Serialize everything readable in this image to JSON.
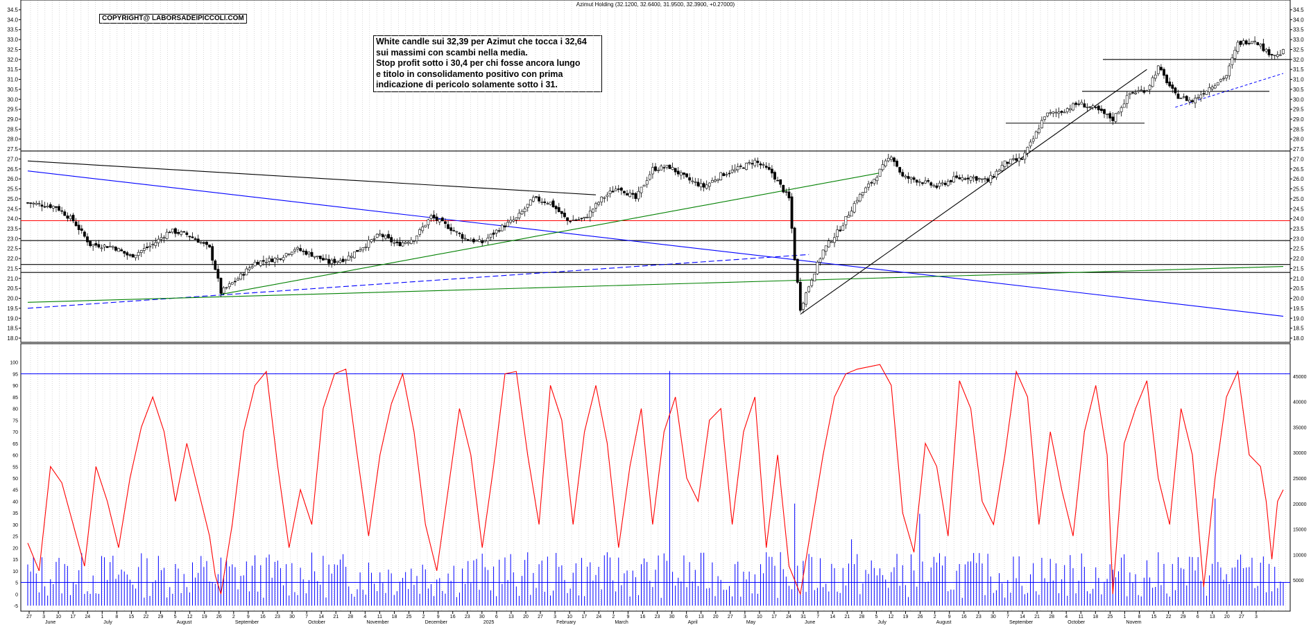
{
  "header": {
    "title": "Azimut Holding (32.1200, 32.6400, 31.9500, 32.3900, +0.27000)",
    "copyright": "COPYRIGHT@ LABORSADEIPICCOLI.COM"
  },
  "note": {
    "lines": [
      "White candle sui 32,39 per Azimut che tocca i 32,64",
      "sui massimi con scambi nella media.",
      "Stop profit sotto i 30,4 per chi fosse ancora lungo",
      "e titolo in consolidamento positivo con prima",
      "indicazione di pericolo solamente sotto i 31."
    ]
  },
  "chart_data": [
    {
      "type": "candlestick",
      "title": "Azimut Holding (32.1200, 32.6400, 31.9500, 32.3900, +0.27000)",
      "ylim": [
        18.0,
        34.5
      ],
      "y_ticks": [
        "34.5",
        "34.0",
        "33.5",
        "33.0",
        "32.5",
        "32.0",
        "31.5",
        "31.0",
        "30.5",
        "30.0",
        "29.5",
        "29.0",
        "28.5",
        "28.0",
        "27.5",
        "27.0",
        "26.5",
        "26.0",
        "25.5",
        "25.0",
        "24.5",
        "24.0",
        "23.5",
        "23.0",
        "22.5",
        "22.0",
        "21.5",
        "21.0",
        "20.5",
        "20.0",
        "19.5",
        "19.0",
        "18.5",
        "18.0"
      ],
      "grid": true,
      "last_candle": {
        "open": 32.12,
        "high": 32.64,
        "low": 31.95,
        "close": 32.39,
        "change": 0.27
      },
      "price_path": [
        [
          0,
          24.8
        ],
        [
          10,
          24.6
        ],
        [
          16,
          23.9
        ],
        [
          22,
          22.7
        ],
        [
          30,
          22.6
        ],
        [
          36,
          22.1
        ],
        [
          44,
          22.7
        ],
        [
          50,
          23.4
        ],
        [
          56,
          23.2
        ],
        [
          60,
          22.9
        ],
        [
          64,
          22.5
        ],
        [
          66,
          21.5
        ],
        [
          68,
          20.3
        ],
        [
          74,
          21.0
        ],
        [
          80,
          21.8
        ],
        [
          88,
          22.0
        ],
        [
          94,
          22.5
        ],
        [
          100,
          22.2
        ],
        [
          106,
          21.8
        ],
        [
          112,
          22.0
        ],
        [
          118,
          22.6
        ],
        [
          124,
          23.2
        ],
        [
          130,
          22.7
        ],
        [
          136,
          23.0
        ],
        [
          142,
          24.1
        ],
        [
          148,
          23.6
        ],
        [
          154,
          23.0
        ],
        [
          160,
          22.8
        ],
        [
          166,
          23.5
        ],
        [
          172,
          24.0
        ],
        [
          178,
          25.0
        ],
        [
          184,
          24.8
        ],
        [
          190,
          23.9
        ],
        [
          196,
          24.0
        ],
        [
          202,
          25.0
        ],
        [
          208,
          25.6
        ],
        [
          214,
          25.0
        ],
        [
          220,
          26.5
        ],
        [
          226,
          26.6
        ],
        [
          232,
          26.0
        ],
        [
          238,
          25.6
        ],
        [
          244,
          26.2
        ],
        [
          250,
          26.5
        ],
        [
          256,
          26.9
        ],
        [
          262,
          26.3
        ],
        [
          268,
          25.0
        ],
        [
          270,
          22.0
        ],
        [
          272,
          19.5
        ],
        [
          276,
          21.0
        ],
        [
          280,
          22.4
        ],
        [
          286,
          23.5
        ],
        [
          292,
          25.0
        ],
        [
          298,
          26.0
        ],
        [
          304,
          27.2
        ],
        [
          308,
          26.1
        ],
        [
          314,
          25.9
        ],
        [
          320,
          25.6
        ],
        [
          326,
          26.0
        ],
        [
          332,
          26.1
        ],
        [
          338,
          25.9
        ],
        [
          344,
          26.8
        ],
        [
          350,
          27.0
        ],
        [
          354,
          28.0
        ],
        [
          358,
          29.2
        ],
        [
          364,
          29.4
        ],
        [
          370,
          29.8
        ],
        [
          376,
          29.5
        ],
        [
          382,
          29.0
        ],
        [
          388,
          30.3
        ],
        [
          394,
          30.5
        ],
        [
          398,
          31.6
        ],
        [
          404,
          30.2
        ],
        [
          410,
          29.9
        ],
        [
          416,
          30.6
        ],
        [
          422,
          31.2
        ],
        [
          426,
          32.8
        ],
        [
          432,
          33.0
        ],
        [
          436,
          32.4
        ],
        [
          440,
          32.2
        ],
        [
          442,
          32.39
        ]
      ],
      "lines": {
        "horizontal": [
          27.4,
          23.9,
          22.9,
          21.7,
          21.3,
          32.0,
          30.4,
          28.8
        ],
        "trend": [
          {
            "name": "",
            "color": "#0000ff",
            "from": [
              0,
              26.4
            ],
            "to": [
              442,
              19.1
            ]
          },
          {
            "name": "",
            "color": "#0000ff",
            "from": [
              0,
              19.5
            ],
            "to": [
              275,
              22.2
            ]
          },
          {
            "name": "",
            "color": "#008000",
            "from": [
              0,
              19.8
            ],
            "to": [
              442,
              21.6
            ]
          },
          {
            "name": "",
            "color": "#008000",
            "from": [
              68,
              20.2
            ],
            "to": [
              300,
              26.3
            ]
          },
          {
            "name": "",
            "color": "#000000",
            "from": [
              0,
              26.9
            ],
            "to": [
              200,
              25.2
            ]
          },
          {
            "name": "",
            "color": "#000000",
            "from": [
              272,
              19.2
            ],
            "to": [
              394,
              31.5
            ]
          }
        ]
      }
    },
    {
      "type": "line+bar",
      "name": "oscillator and volume",
      "y_ticks_left": [
        "100",
        "95",
        "90",
        "85",
        "80",
        "75",
        "70",
        "65",
        "60",
        "55",
        "50",
        "45",
        "40",
        "35",
        "30",
        "25",
        "20",
        "15",
        "10",
        "5",
        "0",
        "-5"
      ],
      "y_ticks_right": [
        "45000",
        "40000",
        "35000",
        "30000",
        "25000",
        "20000",
        "15000",
        "10000",
        "5000"
      ],
      "oscillator_levels": [
        95,
        5
      ],
      "oscillator_path": [
        [
          0,
          22
        ],
        [
          4,
          10
        ],
        [
          8,
          55
        ],
        [
          12,
          48
        ],
        [
          16,
          30
        ],
        [
          20,
          12
        ],
        [
          24,
          55
        ],
        [
          28,
          40
        ],
        [
          32,
          20
        ],
        [
          36,
          50
        ],
        [
          40,
          72
        ],
        [
          44,
          85
        ],
        [
          48,
          70
        ],
        [
          52,
          40
        ],
        [
          56,
          65
        ],
        [
          60,
          45
        ],
        [
          64,
          25
        ],
        [
          66,
          8
        ],
        [
          68,
          0
        ],
        [
          72,
          30
        ],
        [
          76,
          70
        ],
        [
          80,
          90
        ],
        [
          84,
          96
        ],
        [
          88,
          55
        ],
        [
          92,
          20
        ],
        [
          96,
          45
        ],
        [
          100,
          30
        ],
        [
          104,
          80
        ],
        [
          108,
          95
        ],
        [
          112,
          97
        ],
        [
          116,
          60
        ],
        [
          120,
          25
        ],
        [
          124,
          60
        ],
        [
          128,
          82
        ],
        [
          132,
          95
        ],
        [
          136,
          70
        ],
        [
          140,
          30
        ],
        [
          144,
          10
        ],
        [
          148,
          45
        ],
        [
          152,
          80
        ],
        [
          156,
          60
        ],
        [
          160,
          20
        ],
        [
          164,
          55
        ],
        [
          168,
          95
        ],
        [
          172,
          96
        ],
        [
          176,
          60
        ],
        [
          180,
          30
        ],
        [
          184,
          90
        ],
        [
          188,
          75
        ],
        [
          192,
          30
        ],
        [
          196,
          70
        ],
        [
          200,
          90
        ],
        [
          204,
          65
        ],
        [
          208,
          20
        ],
        [
          212,
          55
        ],
        [
          216,
          80
        ],
        [
          220,
          30
        ],
        [
          224,
          70
        ],
        [
          228,
          85
        ],
        [
          232,
          50
        ],
        [
          236,
          40
        ],
        [
          240,
          75
        ],
        [
          244,
          80
        ],
        [
          248,
          30
        ],
        [
          252,
          70
        ],
        [
          256,
          85
        ],
        [
          260,
          20
        ],
        [
          264,
          60
        ],
        [
          268,
          12
        ],
        [
          272,
          0
        ],
        [
          276,
          30
        ],
        [
          280,
          60
        ],
        [
          284,
          85
        ],
        [
          288,
          95
        ],
        [
          292,
          97
        ],
        [
          296,
          98
        ],
        [
          300,
          99
        ],
        [
          304,
          90
        ],
        [
          308,
          35
        ],
        [
          312,
          18
        ],
        [
          316,
          65
        ],
        [
          320,
          55
        ],
        [
          324,
          25
        ],
        [
          328,
          92
        ],
        [
          332,
          80
        ],
        [
          336,
          40
        ],
        [
          340,
          30
        ],
        [
          344,
          60
        ],
        [
          348,
          96
        ],
        [
          352,
          85
        ],
        [
          356,
          30
        ],
        [
          360,
          70
        ],
        [
          364,
          45
        ],
        [
          368,
          25
        ],
        [
          372,
          70
        ],
        [
          376,
          90
        ],
        [
          380,
          60
        ],
        [
          382,
          0
        ],
        [
          386,
          65
        ],
        [
          390,
          80
        ],
        [
          394,
          92
        ],
        [
          398,
          50
        ],
        [
          402,
          30
        ],
        [
          406,
          80
        ],
        [
          410,
          60
        ],
        [
          414,
          3
        ],
        [
          418,
          50
        ],
        [
          422,
          85
        ],
        [
          426,
          96
        ],
        [
          430,
          60
        ],
        [
          434,
          55
        ],
        [
          436,
          40
        ],
        [
          438,
          15
        ],
        [
          440,
          40
        ],
        [
          442,
          45
        ]
      ],
      "volume_spikes": [
        [
          226,
          46000
        ],
        [
          270,
          20000
        ],
        [
          290,
          13000
        ],
        [
          314,
          18000
        ],
        [
          418,
          21000
        ]
      ]
    }
  ],
  "x_axis": {
    "day_ticks": [
      "27",
      "3",
      "10",
      "17",
      "24",
      "1",
      "8",
      "15",
      "22",
      "29",
      "5",
      "12",
      "19",
      "26",
      "2",
      "9",
      "16",
      "23",
      "30",
      "7",
      "14",
      "21",
      "28",
      "4",
      "11",
      "18",
      "25",
      "2",
      "9",
      "16",
      "23",
      "30",
      "6",
      "13",
      "20",
      "27",
      "3",
      "10",
      "17",
      "24",
      "2",
      "9",
      "16",
      "23",
      "30",
      "6",
      "13",
      "20",
      "27",
      "3",
      "10",
      "17",
      "24",
      "31",
      "7",
      "14",
      "21",
      "28",
      "5",
      "12",
      "19",
      "26",
      "2",
      "9",
      "16",
      "23",
      "30",
      "7",
      "14",
      "21",
      "28",
      "4",
      "11",
      "18",
      "25",
      "1",
      "8",
      "15",
      "22",
      "29",
      "6",
      "13",
      "20",
      "27",
      "3"
    ],
    "month_labels": [
      "June",
      "July",
      "August",
      "September",
      "October",
      "November",
      "December",
      "2025",
      "February",
      "March",
      "April",
      "May",
      "June",
      "July",
      "August",
      "September",
      "October",
      "Novem"
    ]
  }
}
